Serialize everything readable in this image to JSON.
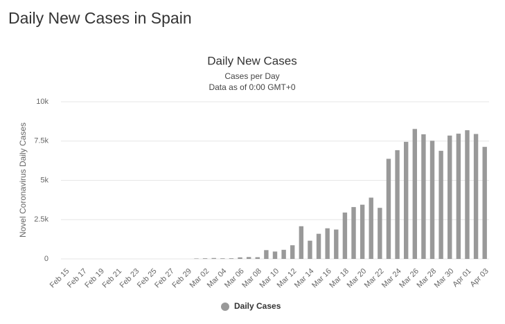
{
  "header": {
    "title": "Daily New Cases in Spain"
  },
  "chart_data": {
    "type": "bar",
    "title": "Daily New Cases",
    "subtitle": [
      "Cases per Day",
      "Data as of 0:00 GMT+0"
    ],
    "y_label": "Novel Coronavirus Daily Cases",
    "categories": [
      "Feb 15",
      null,
      "Feb 17",
      null,
      "Feb 19",
      null,
      "Feb 21",
      null,
      "Feb 23",
      null,
      "Feb 25",
      null,
      "Feb 27",
      null,
      "Feb 29",
      null,
      "Mar 02",
      null,
      "Mar 04",
      null,
      "Mar 06",
      null,
      "Mar 08",
      null,
      "Mar 10",
      null,
      "Mar 12",
      null,
      "Mar 14",
      null,
      "Mar 16",
      null,
      "Mar 18",
      null,
      "Mar 20",
      null,
      "Mar 22",
      null,
      "Mar 24",
      null,
      "Mar 26",
      null,
      "Mar 28",
      null,
      "Mar 30",
      null,
      "Apr 01",
      null,
      "Apr 03"
    ],
    "series": [
      {
        "name": "Daily Cases",
        "color": "#999999",
        "values": [
          0,
          0,
          0,
          0,
          0,
          0,
          0,
          0,
          0,
          0,
          0,
          0,
          0,
          0,
          0,
          27,
          39,
          57,
          37,
          39,
          100,
          120,
          110,
          560,
          470,
          580,
          870,
          2080,
          1160,
          1600,
          1950,
          1870,
          2950,
          3300,
          3450,
          3900,
          3250,
          6370,
          6920,
          7450,
          8270,
          7930,
          7520,
          6880,
          7850,
          7970,
          8190,
          7950,
          7130
        ]
      }
    ],
    "ylim": [
      0,
      10000
    ],
    "yticks": [
      0,
      {
        "value": 2500,
        "label": "2.5k"
      },
      {
        "value": 5000,
        "label": "5k"
      },
      {
        "value": 7500,
        "label": "7.5k"
      },
      {
        "value": 10000,
        "label": "10k"
      }
    ],
    "grid": true,
    "legend": "bottom"
  }
}
